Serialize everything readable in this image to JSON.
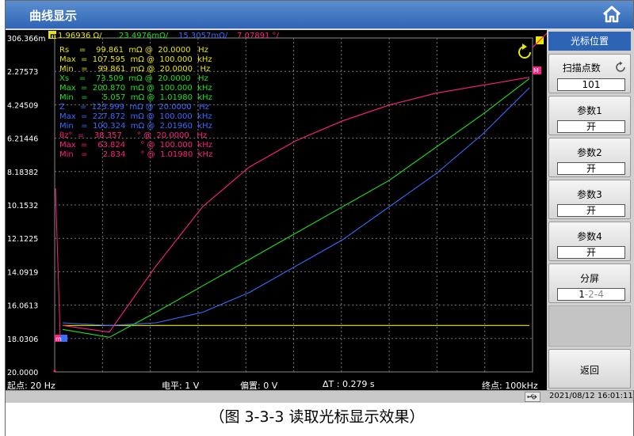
{
  "window": {
    "title": "曲线显示"
  },
  "header_readout": {
    "marker_label": "m",
    "values": [
      {
        "text": "1.96936 Ω/",
        "color": "#e8e800"
      },
      {
        "text": "23.4976mΩ/",
        "color": "#20e020"
      },
      {
        "text": "15.3057mΩ/",
        "color": "#3a6cff"
      },
      {
        "text": "7.07891 °/",
        "color": "#ff2080"
      }
    ]
  },
  "readout_rows": [
    {
      "text": "Rs    =    99.861  mΩ @  20.0000   Hz",
      "color": "#e8e800"
    },
    {
      "text": "Max  =  107.595  mΩ @  100.000  kHz",
      "color": "#e8e800"
    },
    {
      "text": "Min   =    99.861  mΩ @  20.0000   Hz",
      "color": "#e8e800"
    },
    {
      "text": "Xs    =    73.509  mΩ @  20.0000   Hz",
      "color": "#20e020"
    },
    {
      "text": "Max  =  200.870  mΩ @  100.000  kHz",
      "color": "#20e020"
    },
    {
      "text": "Min   =      5.057  mΩ @  1.01980  kHz",
      "color": "#20e020"
    },
    {
      "text": "Z      =  123.999  mΩ @  20.0000   Hz",
      "color": "#3a6cff"
    },
    {
      "text": "Max  =  227.872  mΩ @  100.000  kHz",
      "color": "#3a6cff"
    },
    {
      "text": "Min   =  100.324  mΩ @  2.01960  kHz",
      "color": "#3a6cff"
    },
    {
      "text": "θz°  =    38.357      ° @  20.0000   Hz",
      "color": "#ff2080"
    },
    {
      "text": "Max  =    63.824      ° @  100.000  kHz",
      "color": "#ff2080"
    },
    {
      "text": "Min   =      2.834      ° @  1.01980  kHz",
      "color": "#ff2080"
    }
  ],
  "y_axis_labels": [
    "306.366m",
    "2.27573",
    "4.24509",
    "6.21446",
    "8.18382",
    "10.1532",
    "12.1225",
    "14.0919",
    "16.0613",
    "18.0306",
    "20.0000"
  ],
  "markers": {
    "left": "m",
    "right": "M"
  },
  "status": {
    "start": "起点: 20 Hz",
    "level": "电平: 1 V",
    "bias": "偏置: 0 V",
    "delta_t": "ΔT : 0.279 s",
    "end": "终点: 100kHz"
  },
  "datetime": "2021/08/12 16:01:11",
  "softkeys": {
    "header": "光标位置",
    "scan_points": {
      "label": "扫描点数",
      "value": "101"
    },
    "param1": {
      "label": "参数1",
      "value": "开"
    },
    "param2": {
      "label": "参数2",
      "value": "开"
    },
    "param3": {
      "label": "参数3",
      "value": "开"
    },
    "param4": {
      "label": "参数4",
      "value": "开"
    },
    "split": {
      "label": "分屏",
      "value_active": "1",
      "value_rest": "-2-4"
    },
    "back": {
      "label": "返回"
    }
  },
  "caption": "（图 3-3-3 读取光标显示效果）",
  "colors": {
    "rs": "#e8e800",
    "xs": "#20e020",
    "z": "#3a6cff",
    "theta": "#ff2080",
    "grid": "#777777"
  },
  "chart_data": {
    "type": "line",
    "y_tick_labels": [
      "306.366m",
      "2.27573",
      "4.24509",
      "6.21446",
      "8.18382",
      "10.1532",
      "12.1225",
      "14.0919",
      "16.0613",
      "18.0306",
      "20.0000"
    ],
    "x_range": [
      "20 Hz",
      "100kHz"
    ],
    "grid": true,
    "series": [
      {
        "name": "Rs",
        "color": "#e8e800",
        "y": [
          0.1,
          0.1,
          0.1,
          0.1,
          0.1,
          0.1,
          0.1,
          0.1,
          0.1,
          0.1,
          0.1
        ]
      },
      {
        "name": "Xs",
        "color": "#20e020",
        "y": [
          0.07,
          0.01,
          0.2,
          0.4,
          0.6,
          0.8,
          1.0,
          1.2,
          1.45,
          1.7,
          1.97
        ]
      },
      {
        "name": "Z",
        "color": "#3a6cff",
        "y": [
          0.12,
          0.1,
          0.12,
          0.2,
          0.35,
          0.55,
          0.75,
          1.0,
          1.25,
          1.55,
          1.9
        ]
      },
      {
        "name": "θz°",
        "color": "#ff2080",
        "y": [
          0.1,
          0.05,
          0.55,
          1.0,
          1.3,
          1.5,
          1.65,
          1.77,
          1.86,
          1.92,
          1.98
        ]
      }
    ]
  }
}
